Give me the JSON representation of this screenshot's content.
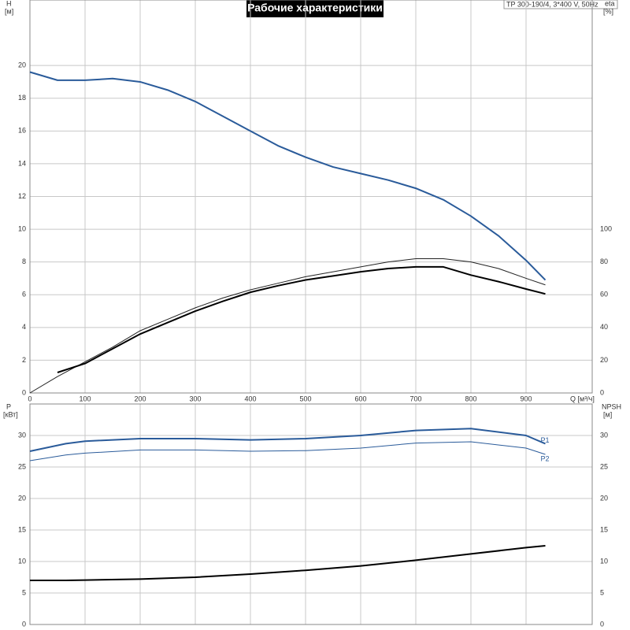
{
  "chart_data": [
    {
      "type": "line",
      "title": "Рабочие характеристики",
      "subtitle": "TP 300-190/4, 3*400 V, 50Hz",
      "y_label": "H",
      "y_unit": "[м]",
      "y2_label": "eta",
      "y2_unit": "[%]",
      "x_label": "Q [м³/ч]",
      "xlim": [
        0,
        1020
      ],
      "xticks": [
        0,
        100,
        200,
        300,
        400,
        500,
        600,
        700,
        800,
        900
      ],
      "ylim": [
        0,
        24
      ],
      "yticks": [
        0,
        2,
        4,
        6,
        8,
        10,
        12,
        14,
        16,
        18,
        20
      ],
      "y2lim": [
        0,
        240
      ],
      "y2ticks": [
        0,
        20,
        40,
        60,
        80,
        100
      ],
      "grid": true,
      "x": [
        0,
        50,
        100,
        150,
        200,
        250,
        300,
        350,
        400,
        450,
        500,
        550,
        600,
        650,
        700,
        750,
        800,
        850,
        900,
        935
      ],
      "series": [
        {
          "color": "#2a5b9a",
          "line_width": 2,
          "values": [
            19.6,
            19.1,
            19.1,
            19.2,
            19.0,
            18.5,
            17.8,
            16.9,
            16.0,
            15.1,
            14.4,
            13.8,
            13.4,
            13.0,
            12.5,
            11.8,
            10.8,
            9.6,
            8.1,
            6.9
          ]
        },
        {
          "color": "#222222",
          "line_width": 1,
          "axis": "y2",
          "values": [
            0,
            10,
            19,
            28,
            38,
            45,
            52,
            58,
            63,
            67,
            71,
            74,
            77,
            80,
            82,
            82,
            80,
            76,
            70,
            66
          ]
        },
        {
          "color": "#000000",
          "line_width": 2,
          "axis": "y2",
          "values": [
            null,
            12.5,
            18,
            27,
            36,
            43,
            50,
            56,
            61.5,
            65.5,
            69,
            71.5,
            74,
            76,
            77,
            77,
            72,
            68,
            63.5,
            60.5
          ]
        }
      ]
    },
    {
      "type": "line",
      "y_label": "P",
      "y_unit": "[кВт]",
      "y2_label": "NPSH",
      "y2_unit": "[м]",
      "xlim": [
        0,
        1020
      ],
      "ylim": [
        0,
        35
      ],
      "yticks": [
        0,
        5,
        10,
        15,
        20,
        25,
        30
      ],
      "y2lim": [
        0,
        35
      ],
      "y2ticks": [
        0,
        5,
        10,
        15,
        20,
        25,
        30
      ],
      "grid": true,
      "x": [
        0,
        65,
        100,
        200,
        300,
        400,
        500,
        600,
        700,
        800,
        900,
        935
      ],
      "series": [
        {
          "name": "P1",
          "color": "#2a5b9a",
          "line_width": 2,
          "values": [
            27.5,
            28.7,
            29.1,
            29.5,
            29.5,
            29.3,
            29.5,
            30.0,
            30.8,
            31.1,
            30.0,
            28.7
          ]
        },
        {
          "name": "P2",
          "color": "#2a5b9a",
          "line_width": 1,
          "values": [
            26.0,
            26.9,
            27.2,
            27.7,
            27.7,
            27.5,
            27.6,
            28.0,
            28.8,
            29.0,
            28.0,
            27.0
          ]
        },
        {
          "color": "#000000",
          "line_width": 2,
          "axis": "y2",
          "values": [
            7.0,
            7.0,
            7.05,
            7.2,
            7.5,
            8.0,
            8.6,
            9.3,
            10.2,
            11.2,
            12.2,
            12.5
          ]
        }
      ]
    }
  ]
}
